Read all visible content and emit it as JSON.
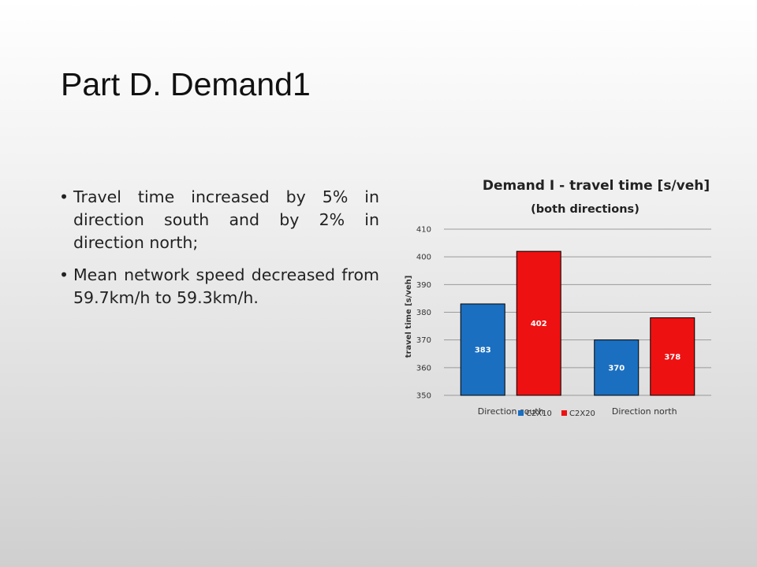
{
  "slide": {
    "title": "Part D. Demand1",
    "bullets": [
      "Travel time increased by 5% in direction south and by 2% in direction north;",
      "Mean network speed decreased from 59.7km/h to 59.3km/h."
    ],
    "bullet_symbol": "•"
  },
  "chart_data": {
    "type": "bar",
    "title": "Demand I - travel time  [s/veh]",
    "subtitle": "(both directions)",
    "xlabel": "",
    "ylabel": "travel time [s/veh]",
    "categories": [
      "Direction south",
      "Direction north"
    ],
    "series": [
      {
        "name": "C2X10",
        "values": [
          383,
          370
        ],
        "color": "#1a6fc0"
      },
      {
        "name": "C2X20",
        "values": [
          402,
          378
        ],
        "color": "#ee1111"
      }
    ],
    "data_label_colors": [
      "#ffffff",
      "#ffffff"
    ],
    "ylim": [
      350,
      410
    ],
    "yticks": [
      350,
      360,
      370,
      380,
      390,
      400,
      410
    ],
    "grid": true,
    "legend_position": "bottom"
  }
}
